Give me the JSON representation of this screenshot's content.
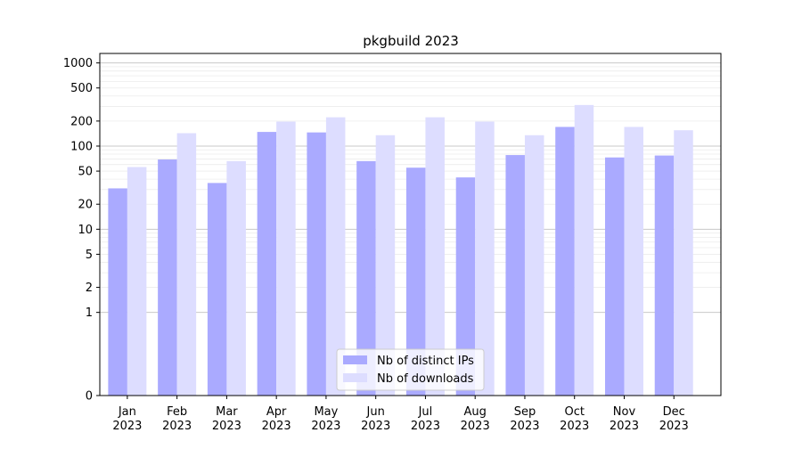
{
  "chart_data": {
    "type": "bar",
    "title": "pkgbuild 2023",
    "xlabel": "",
    "ylabel": "",
    "y_scale": "symlog",
    "ylim": [
      0,
      1300
    ],
    "y_ticks": [
      0,
      1,
      2,
      5,
      10,
      20,
      50,
      100,
      200,
      500,
      1000
    ],
    "grid": true,
    "legend_position": "bottom-center",
    "categories": [
      "Jan\n2023",
      "Feb\n2023",
      "Mar\n2023",
      "Apr\n2023",
      "May\n2023",
      "Jun\n2023",
      "Jul\n2023",
      "Aug\n2023",
      "Sep\n2023",
      "Oct\n2023",
      "Nov\n2023",
      "Dec\n2023"
    ],
    "series": [
      {
        "name": "Nb of distinct IPs",
        "color": "#aaaaff",
        "values": [
          31,
          69,
          36,
          148,
          146,
          66,
          55,
          42,
          78,
          170,
          73,
          77
        ]
      },
      {
        "name": "Nb of downloads",
        "color": "#ddddff",
        "values": [
          56,
          143,
          66,
          197,
          222,
          135,
          222,
          197,
          135,
          312,
          170,
          155
        ]
      }
    ]
  }
}
